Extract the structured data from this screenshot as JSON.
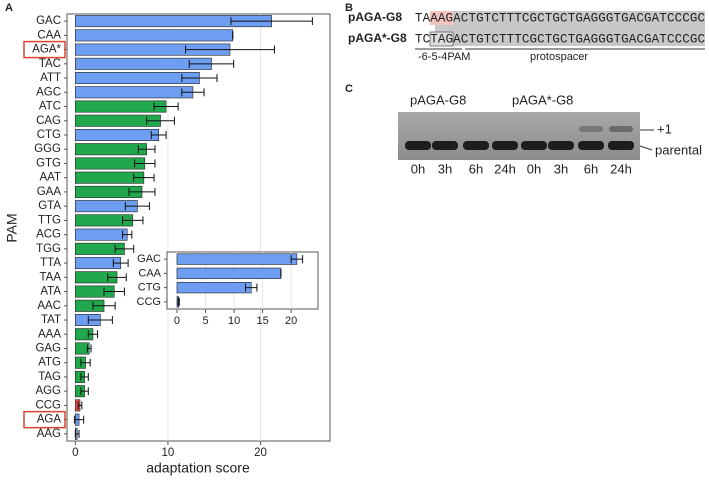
{
  "chart_data": [
    {
      "type": "barh",
      "panel": "A",
      "xlabel": "adaptation score",
      "ylabel": "PAM",
      "categories": [
        "GAC",
        "CAA",
        "AGA*",
        "TAC",
        "ATT",
        "AGC",
        "ATC",
        "CAG",
        "CTG",
        "GGG",
        "GTG",
        "AAT",
        "GAA",
        "GTA",
        "TTG",
        "ACG",
        "TGG",
        "TTA",
        "TAA",
        "ATA",
        "AAC",
        "TAT",
        "AAA",
        "GAG",
        "ATG",
        "TAG",
        "AGG",
        "CCG",
        "AGA",
        "AAG"
      ],
      "values": [
        21.2,
        17.0,
        16.7,
        14.7,
        13.4,
        12.7,
        9.8,
        9.2,
        9.0,
        7.7,
        7.5,
        7.4,
        7.2,
        6.7,
        6.2,
        5.6,
        5.3,
        4.9,
        4.5,
        4.2,
        3.1,
        2.7,
        1.9,
        1.5,
        1.1,
        1.0,
        1.0,
        0.5,
        0.4,
        0.2
      ],
      "errors": [
        4.4,
        0,
        4.8,
        2.4,
        1.9,
        1.2,
        1.3,
        1.5,
        0.8,
        0.9,
        1.1,
        1.1,
        1.4,
        1.3,
        1.1,
        0.5,
        1.0,
        0.8,
        1.0,
        1.1,
        1.2,
        1.3,
        0.5,
        0.2,
        0.5,
        0.4,
        0.4,
        0.2,
        0.5,
        0.2
      ],
      "colors": [
        "#6d9ef2",
        "#6d9ef2",
        "#6d9ef2",
        "#6d9ef2",
        "#6d9ef2",
        "#6d9ef2",
        "#22a84c",
        "#22a84c",
        "#6d9ef2",
        "#22a84c",
        "#22a84c",
        "#22a84c",
        "#22a84c",
        "#6d9ef2",
        "#22a84c",
        "#6d9ef2",
        "#22a84c",
        "#6d9ef2",
        "#22a84c",
        "#22a84c",
        "#22a84c",
        "#6d9ef2",
        "#22a84c",
        "#22a84c",
        "#22a84c",
        "#22a84c",
        "#22a84c",
        "#e0524a",
        "#6d9ef2",
        "#6d9ef2"
      ],
      "highlight_categories": [
        2,
        28
      ],
      "xlim": [
        -0.9,
        27.5
      ],
      "xticks": [
        0,
        10,
        20
      ],
      "grid": true
    },
    {
      "type": "barh",
      "categories": [
        "GAC",
        "CAA",
        "CTG",
        "CCG"
      ],
      "values": [
        21.0,
        18.2,
        13.0,
        0.3
      ],
      "errors": [
        1.0,
        0,
        1.0,
        0.1
      ],
      "color": "#6d9ef2",
      "xlim": [
        -1.75,
        24.7
      ],
      "xticks": [
        0,
        5,
        10,
        15,
        20
      ],
      "grid": true
    }
  ],
  "panel_b": {
    "label": "B",
    "rows": [
      {
        "name": "pAGA-G8",
        "sequence": "TAAAGACTGTCTTTCGCTGCTGAGGGTGACGATCCCGC"
      },
      {
        "name": "pAGA*-G8",
        "sequence": "TCTAGACTGTCTTTCGCTGCTGAGGGTGACGATCCCGC"
      }
    ],
    "pam_label": "-6-5-4PAM",
    "protospacer_label": "protospacer"
  },
  "panel_c": {
    "label": "C",
    "groups": [
      "pAGA-G8",
      "pAGA*-G8"
    ],
    "lanes": [
      "0h",
      "3h",
      "6h",
      "24h",
      "0h",
      "3h",
      "6h",
      "24h"
    ],
    "band_labels": [
      "+1",
      "parental"
    ]
  }
}
